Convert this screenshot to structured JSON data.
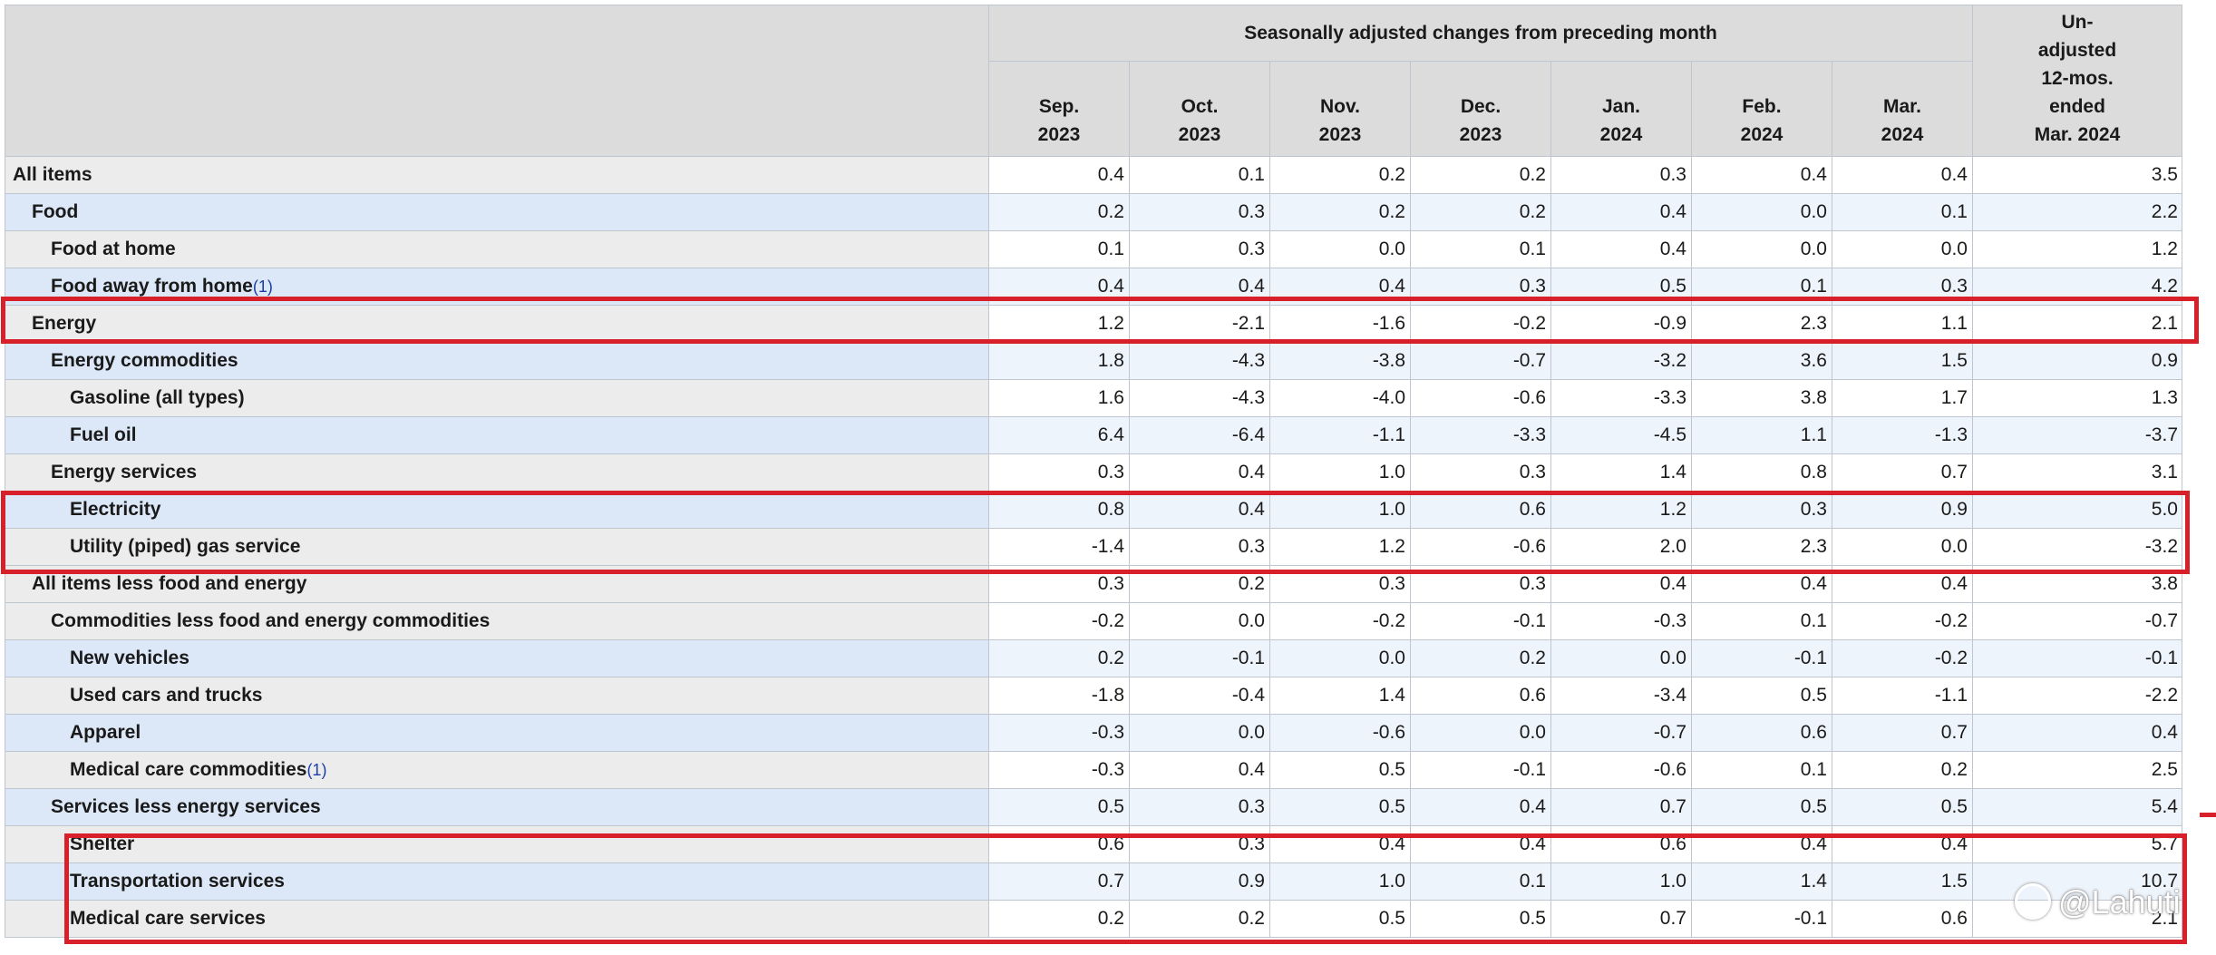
{
  "header": {
    "group_title": "Seasonally adjusted changes from preceding month",
    "months": [
      {
        "line1": "Sep.",
        "line2": "2023"
      },
      {
        "line1": "Oct.",
        "line2": "2023"
      },
      {
        "line1": "Nov.",
        "line2": "2023"
      },
      {
        "line1": "Dec.",
        "line2": "2023"
      },
      {
        "line1": "Jan.",
        "line2": "2024"
      },
      {
        "line1": "Feb.",
        "line2": "2024"
      },
      {
        "line1": "Mar.",
        "line2": "2024"
      }
    ],
    "unadjusted": {
      "line1": "Un-",
      "line2": "adjusted",
      "line3": "12-mos.",
      "line4": "ended",
      "line5": "Mar. 2024"
    }
  },
  "rows": [
    {
      "label": "All items",
      "footnote": "",
      "values": [
        "0.4",
        "0.1",
        "0.2",
        "0.2",
        "0.3",
        "0.4",
        "0.4",
        "3.5"
      ]
    },
    {
      "label": "Food",
      "footnote": "",
      "values": [
        "0.2",
        "0.3",
        "0.2",
        "0.2",
        "0.4",
        "0.0",
        "0.1",
        "2.2"
      ]
    },
    {
      "label": "Food at home",
      "footnote": "",
      "values": [
        "0.1",
        "0.3",
        "0.0",
        "0.1",
        "0.4",
        "0.0",
        "0.0",
        "1.2"
      ]
    },
    {
      "label": "Food away from home",
      "footnote": "(1)",
      "values": [
        "0.4",
        "0.4",
        "0.4",
        "0.3",
        "0.5",
        "0.1",
        "0.3",
        "4.2"
      ]
    },
    {
      "label": "Energy",
      "footnote": "",
      "values": [
        "1.2",
        "-2.1",
        "-1.6",
        "-0.2",
        "-0.9",
        "2.3",
        "1.1",
        "2.1"
      ]
    },
    {
      "label": "Energy commodities",
      "footnote": "",
      "values": [
        "1.8",
        "-4.3",
        "-3.8",
        "-0.7",
        "-3.2",
        "3.6",
        "1.5",
        "0.9"
      ]
    },
    {
      "label": "Gasoline (all types)",
      "footnote": "",
      "values": [
        "1.6",
        "-4.3",
        "-4.0",
        "-0.6",
        "-3.3",
        "3.8",
        "1.7",
        "1.3"
      ]
    },
    {
      "label": "Fuel oil",
      "footnote": "",
      "values": [
        "6.4",
        "-6.4",
        "-1.1",
        "-3.3",
        "-4.5",
        "1.1",
        "-1.3",
        "-3.7"
      ]
    },
    {
      "label": "Energy services",
      "footnote": "",
      "values": [
        "0.3",
        "0.4",
        "1.0",
        "0.3",
        "1.4",
        "0.8",
        "0.7",
        "3.1"
      ]
    },
    {
      "label": "Electricity",
      "footnote": "",
      "values": [
        "0.8",
        "0.4",
        "1.0",
        "0.6",
        "1.2",
        "0.3",
        "0.9",
        "5.0"
      ]
    },
    {
      "label": "Utility (piped) gas service",
      "footnote": "",
      "values": [
        "-1.4",
        "0.3",
        "1.2",
        "-0.6",
        "2.0",
        "2.3",
        "0.0",
        "-3.2"
      ]
    },
    {
      "label": "All items less food and energy",
      "footnote": "",
      "values": [
        "0.3",
        "0.2",
        "0.3",
        "0.3",
        "0.4",
        "0.4",
        "0.4",
        "3.8"
      ]
    },
    {
      "label": "Commodities less food and energy commodities",
      "footnote": "",
      "values": [
        "-0.2",
        "0.0",
        "-0.2",
        "-0.1",
        "-0.3",
        "0.1",
        "-0.2",
        "-0.7"
      ]
    },
    {
      "label": "New vehicles",
      "footnote": "",
      "values": [
        "0.2",
        "-0.1",
        "0.0",
        "0.2",
        "0.0",
        "-0.1",
        "-0.2",
        "-0.1"
      ]
    },
    {
      "label": "Used cars and trucks",
      "footnote": "",
      "values": [
        "-1.8",
        "-0.4",
        "1.4",
        "0.6",
        "-3.4",
        "0.5",
        "-1.1",
        "-2.2"
      ]
    },
    {
      "label": "Apparel",
      "footnote": "",
      "values": [
        "-0.3",
        "0.0",
        "-0.6",
        "0.0",
        "-0.7",
        "0.6",
        "0.7",
        "0.4"
      ]
    },
    {
      "label": "Medical care commodities",
      "footnote": "(1)",
      "values": [
        "-0.3",
        "0.4",
        "0.5",
        "-0.1",
        "-0.6",
        "0.1",
        "0.2",
        "2.5"
      ]
    },
    {
      "label": "Services less energy services",
      "footnote": "",
      "values": [
        "0.5",
        "0.3",
        "0.5",
        "0.4",
        "0.7",
        "0.5",
        "0.5",
        "5.4"
      ]
    },
    {
      "label": "Shelter",
      "footnote": "",
      "values": [
        "0.6",
        "0.3",
        "0.4",
        "0.4",
        "0.6",
        "0.4",
        "0.4",
        "5.7"
      ]
    },
    {
      "label": "Transportation services",
      "footnote": "",
      "values": [
        "0.7",
        "0.9",
        "1.0",
        "0.1",
        "1.0",
        "1.4",
        "1.5",
        "10.7"
      ]
    },
    {
      "label": "Medical care services",
      "footnote": "",
      "values": [
        "0.2",
        "0.2",
        "0.5",
        "0.5",
        "0.7",
        "-0.1",
        "0.6",
        "2.1"
      ]
    }
  ],
  "highlight_color": "#d8202a",
  "watermark": {
    "text": "@Lahuti",
    "icon": "zhihu-logo-icon"
  }
}
